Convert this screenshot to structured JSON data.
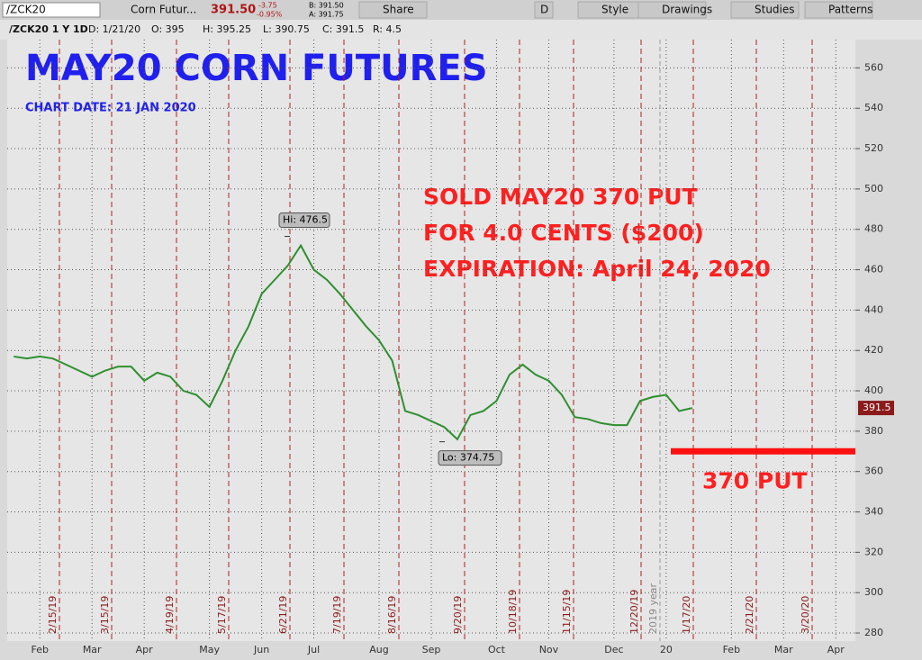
{
  "toolbar": {
    "symbol": "/ZCK20",
    "name": "Corn Futur...",
    "last": "391.50",
    "change": "-3.75",
    "change_pct": "-0.95%",
    "bid": "B: 391.50",
    "ask": "A: 391.75",
    "buttons": [
      "Share",
      "D",
      "Style",
      "Drawings",
      "Studies",
      "Patterns"
    ]
  },
  "info_bar": [
    "/ZCK20 1 Y 1D",
    "D: 1/21/20",
    "O: 395",
    "H: 395.25",
    "L: 390.75",
    "C: 391.5",
    "R: 4.5"
  ],
  "chart_data": {
    "type": "line",
    "title": "MAY20 CORN FUTURES",
    "subtitle": "CHART DATE: 21 JAN 2020",
    "annotation_lines": [
      "SOLD MAY20 370 PUT",
      "FOR  4.0 CENTS ($200)",
      "EXPIRATION: April 24, 2020"
    ],
    "categories": [
      null,
      null,
      "Feb",
      null,
      null,
      null,
      "Mar",
      null,
      null,
      null,
      "Apr",
      null,
      null,
      null,
      null,
      "May",
      null,
      null,
      null,
      "Jun",
      null,
      null,
      null,
      "Jul",
      null,
      null,
      null,
      null,
      "Aug",
      null,
      null,
      null,
      "Sep",
      null,
      null,
      null,
      null,
      "Oct",
      null,
      null,
      null,
      "Nov",
      null,
      null,
      null,
      null,
      "Dec",
      null,
      null,
      null,
      "20",
      null,
      null,
      null,
      null,
      "Feb",
      null,
      null,
      null,
      "Mar",
      null,
      null,
      null,
      "Apr",
      null
    ],
    "series": [
      {
        "name": "/ZCK20",
        "color": "#2f8f2f",
        "values": [
          417,
          416,
          417,
          416,
          413,
          410,
          407,
          410,
          412,
          412,
          405,
          409,
          407,
          400,
          398,
          392,
          405,
          420,
          432,
          448,
          455,
          462,
          472,
          460,
          455,
          448,
          440,
          432,
          425,
          415,
          390,
          388,
          385,
          382,
          376,
          388,
          390,
          395,
          408,
          413,
          408,
          405,
          398,
          387,
          386,
          384,
          383,
          383,
          395,
          397,
          398,
          390,
          391.5,
          null,
          null,
          null,
          null,
          null,
          null,
          null,
          null,
          null,
          null,
          null,
          null
        ]
      }
    ],
    "ylim": [
      276,
      574
    ],
    "yticks": [
      280,
      300,
      320,
      340,
      360,
      380,
      400,
      420,
      440,
      460,
      480,
      500,
      520,
      540,
      560
    ],
    "grid": true,
    "last_price": {
      "value": 391.5,
      "label": "391.5"
    },
    "high": {
      "value": 476.5,
      "label": "Hi: 476.5"
    },
    "low": {
      "value": 374.75,
      "label": "Lo: 374.75"
    },
    "strike": {
      "value": 370,
      "label": "370 PUT"
    },
    "expiration_lines": [
      "2/15/19",
      "3/15/19",
      "4/19/19",
      "5/17/19",
      "6/21/19",
      "7/19/19",
      "8/16/19",
      "9/20/19",
      "10/18/19",
      "11/15/19",
      "12/20/19",
      "1/17/20",
      "2/21/20",
      "3/20/20"
    ],
    "year_divider": "2019 year"
  }
}
